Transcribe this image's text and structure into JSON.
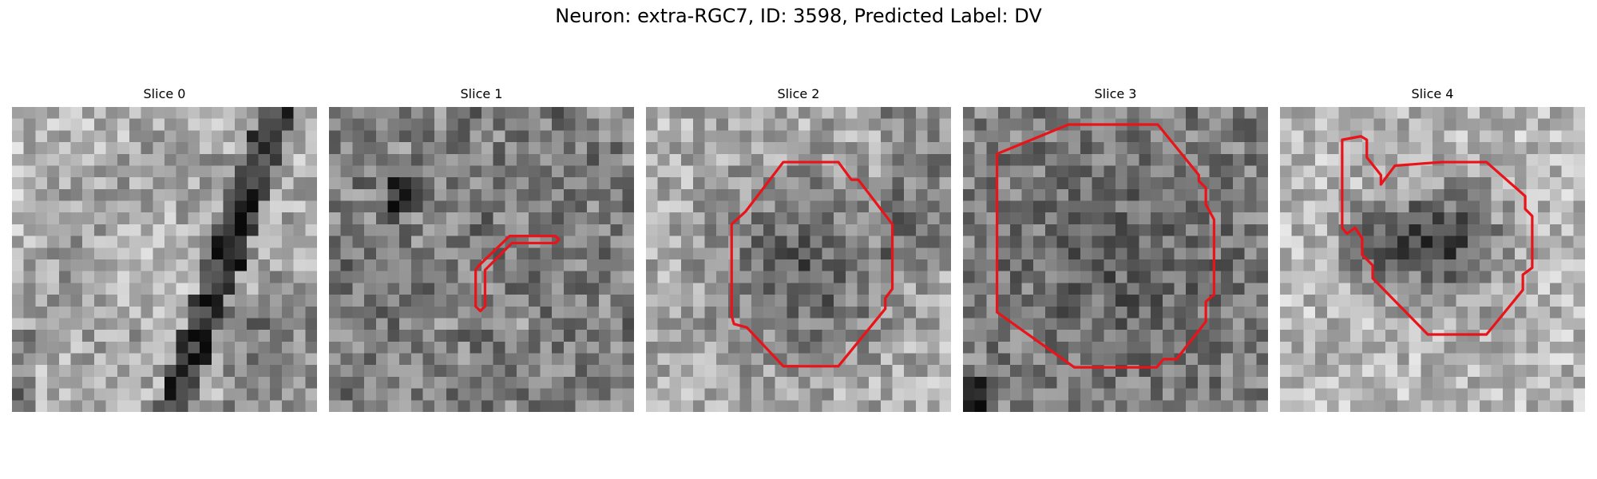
{
  "figure": {
    "title": "Neuron: extra-RGC7, ID: 3598, Predicted Label: DV"
  },
  "colors": {
    "contour": "#e8141a",
    "background": "#ffffff"
  },
  "panels": [
    {
      "title": "Slice 0",
      "seed": 11,
      "pattern": "ring-right",
      "contour": []
    },
    {
      "title": "Slice 1",
      "seed": 23,
      "pattern": "mottled-dark-left",
      "contour": [
        [
          12.8,
          13.5
        ],
        [
          15.4,
          11.0
        ],
        [
          19.3,
          11.0
        ],
        [
          19.6,
          11.3
        ],
        [
          19.3,
          11.6
        ],
        [
          15.6,
          11.6
        ],
        [
          13.3,
          13.9
        ],
        [
          13.3,
          17.0
        ],
        [
          12.9,
          17.4
        ],
        [
          12.5,
          17.0
        ],
        [
          12.5,
          13.9
        ]
      ]
    },
    {
      "title": "Slice 2",
      "seed": 37,
      "pattern": "dark-center",
      "contour": [
        [
          11.7,
          4.7
        ],
        [
          16.4,
          4.7
        ],
        [
          17.5,
          6.2
        ],
        [
          18.1,
          6.2
        ],
        [
          21.0,
          10.0
        ],
        [
          21.0,
          15.5
        ],
        [
          20.4,
          16.3
        ],
        [
          20.4,
          17.2
        ],
        [
          16.4,
          22.1
        ],
        [
          11.7,
          22.1
        ],
        [
          8.6,
          18.8
        ],
        [
          7.5,
          18.5
        ],
        [
          7.3,
          17.8
        ],
        [
          7.3,
          10.0
        ],
        [
          8.5,
          8.9
        ]
      ]
    },
    {
      "title": "Slice 3",
      "seed": 41,
      "pattern": "speckled-dark",
      "contour": [
        [
          9.0,
          1.5
        ],
        [
          16.6,
          1.5
        ],
        [
          20.1,
          5.8
        ],
        [
          20.1,
          6.3
        ],
        [
          20.7,
          6.9
        ],
        [
          20.7,
          8.3
        ],
        [
          21.4,
          9.6
        ],
        [
          21.4,
          16.0
        ],
        [
          20.7,
          16.6
        ],
        [
          20.7,
          18.3
        ],
        [
          18.2,
          21.5
        ],
        [
          17.1,
          21.5
        ],
        [
          16.5,
          22.2
        ],
        [
          9.5,
          22.2
        ],
        [
          2.9,
          17.5
        ],
        [
          2.9,
          4.0
        ]
      ]
    },
    {
      "title": "Slice 4",
      "seed": 53,
      "pattern": "dark-blob-right",
      "contour": [
        [
          6.9,
          2.5
        ],
        [
          7.4,
          2.8
        ],
        [
          7.4,
          4.3
        ],
        [
          8.6,
          5.8
        ],
        [
          8.6,
          6.6
        ],
        [
          9.8,
          5.0
        ],
        [
          13.8,
          4.7
        ],
        [
          17.6,
          4.7
        ],
        [
          20.9,
          7.6
        ],
        [
          20.9,
          8.7
        ],
        [
          21.5,
          9.3
        ],
        [
          21.5,
          13.7
        ],
        [
          20.7,
          14.3
        ],
        [
          20.7,
          15.6
        ],
        [
          17.6,
          19.4
        ],
        [
          12.6,
          19.4
        ],
        [
          7.9,
          14.6
        ],
        [
          7.9,
          13.5
        ],
        [
          7.0,
          12.6
        ],
        [
          7.0,
          11.2
        ],
        [
          6.4,
          10.3
        ],
        [
          5.7,
          10.8
        ],
        [
          5.3,
          10.3
        ],
        [
          5.3,
          2.8
        ]
      ]
    }
  ]
}
